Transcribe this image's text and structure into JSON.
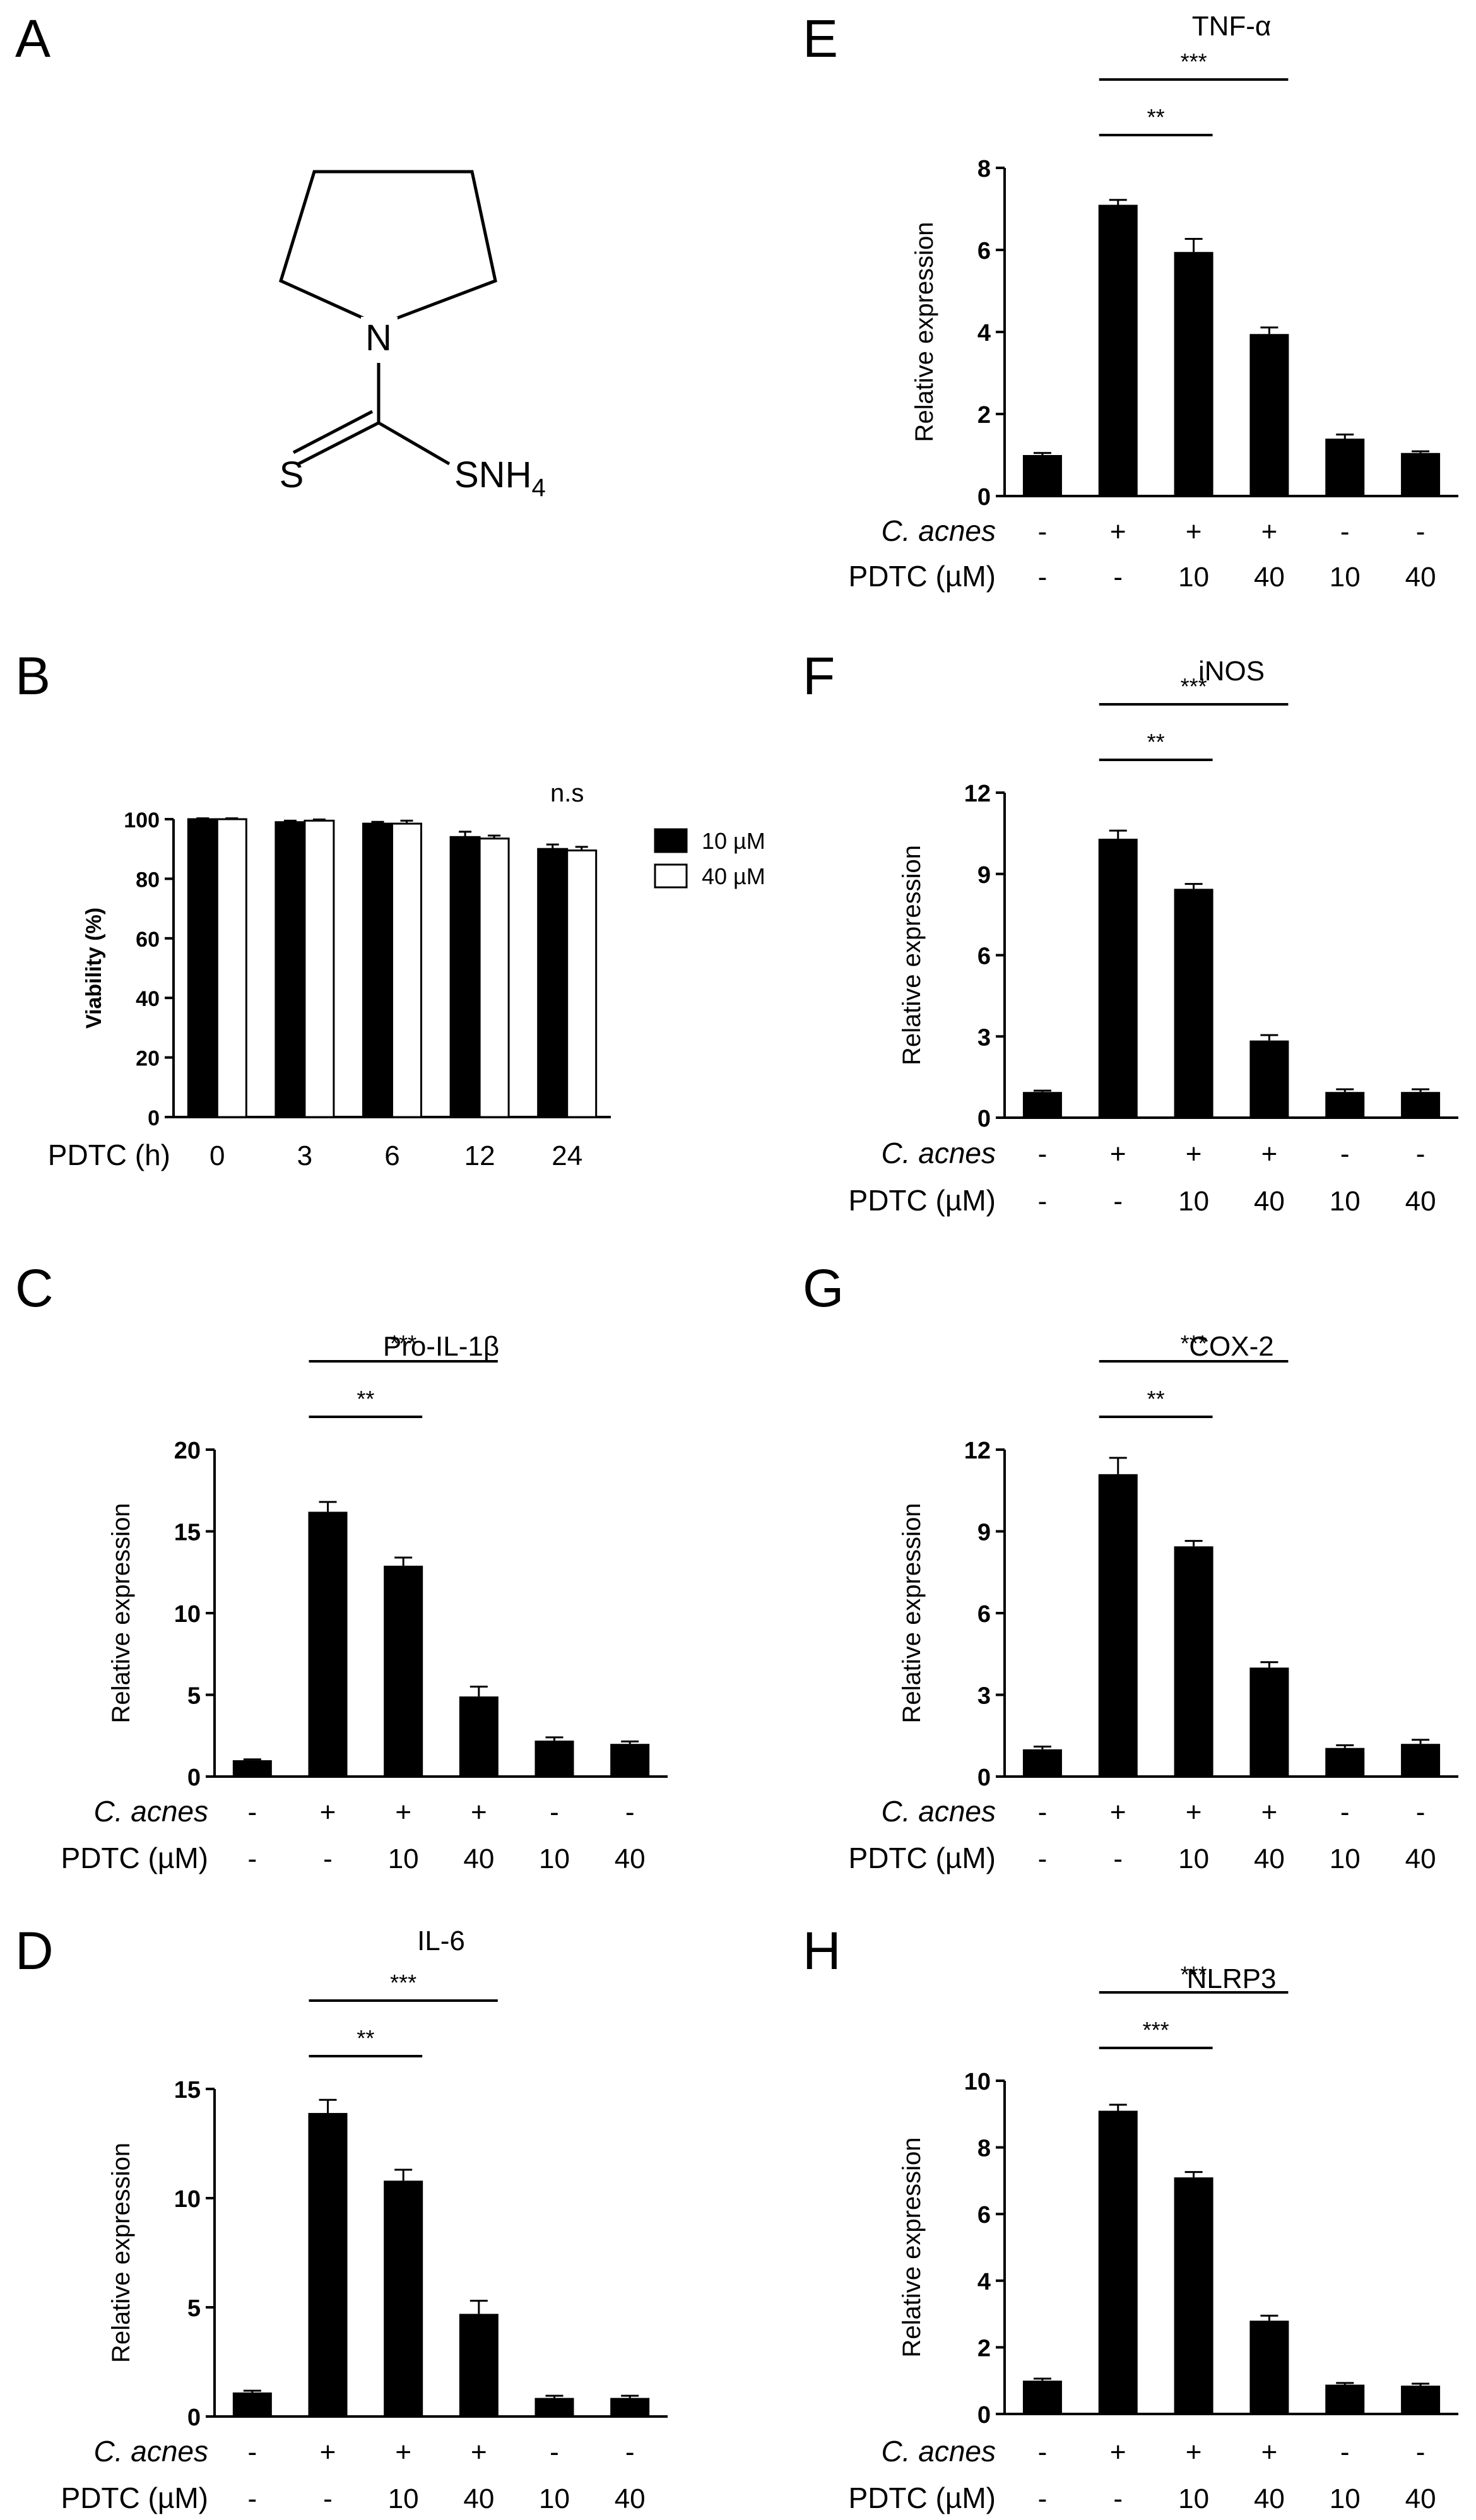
{
  "panel_letters": {
    "A": "A",
    "B": "B",
    "C": "C",
    "D": "D",
    "E": "E",
    "F": "F",
    "G": "G",
    "H": "H"
  },
  "structure": {
    "atom_N": "N",
    "atom_S": "S",
    "group_SNH4": "SNH",
    "group_SNH4_sub": "4"
  },
  "row_labels": {
    "c_acnes": "C. acnes",
    "pdtc_um": "PDTC (µM)",
    "pdtc_h": "PDTC (h)"
  },
  "colors": {
    "bar_fill": "#000000",
    "bar_open": "#ffffff",
    "axis": "#000000"
  },
  "chart_data": [
    {
      "id": "B",
      "type": "bar",
      "title": "",
      "ylabel": "Viability (%)",
      "xlabel": "PDTC (h)",
      "ylim": [
        0,
        100
      ],
      "yticks": [
        "0",
        "20",
        "40",
        "60",
        "80",
        "100"
      ],
      "categories": [
        "0",
        "3",
        "6",
        "12",
        "24"
      ],
      "series": [
        {
          "name": "10 µM",
          "color": "#000000",
          "values": [
            100,
            99,
            98.5,
            94,
            90
          ],
          "errors": [
            0.3,
            0.5,
            0.6,
            1.8,
            1.5
          ]
        },
        {
          "name": "40 µM",
          "color": "#ffffff",
          "values": [
            100,
            99.5,
            98.5,
            93.5,
            89.5
          ],
          "errors": [
            0.3,
            0.4,
            1.0,
            1.0,
            1.2
          ]
        }
      ],
      "annotation": "n.s",
      "legend": "right"
    },
    {
      "id": "C",
      "type": "bar",
      "title": "Pro-IL-1β",
      "ylabel": "Relative expression",
      "ylim": [
        0,
        20
      ],
      "yticks": [
        "0",
        "5",
        "10",
        "15",
        "20"
      ],
      "c_acnes": [
        "-",
        "+",
        "+",
        "+",
        "-",
        "-"
      ],
      "pdtc": [
        "-",
        "-",
        "10",
        "40",
        "10",
        "40"
      ],
      "values": [
        1.0,
        16.2,
        12.9,
        4.9,
        2.2,
        2.0
      ],
      "errors": [
        0.05,
        0.6,
        0.5,
        0.6,
        0.2,
        0.15
      ],
      "significance": [
        {
          "from": 1,
          "to": 2,
          "label": "**"
        },
        {
          "from": 1,
          "to": 3,
          "label": "***"
        }
      ]
    },
    {
      "id": "D",
      "type": "bar",
      "title": "IL-6",
      "ylabel": "Relative expression",
      "ylim": [
        0,
        15
      ],
      "yticks": [
        "0",
        "5",
        "10",
        "15"
      ],
      "c_acnes": [
        "-",
        "+",
        "+",
        "+",
        "-",
        "-"
      ],
      "pdtc": [
        "-",
        "-",
        "10",
        "40",
        "10",
        "40"
      ],
      "values": [
        1.1,
        13.9,
        10.8,
        4.7,
        0.85,
        0.85
      ],
      "errors": [
        0.08,
        0.6,
        0.5,
        0.6,
        0.1,
        0.1
      ],
      "significance": [
        {
          "from": 1,
          "to": 2,
          "label": "**"
        },
        {
          "from": 1,
          "to": 3,
          "label": "***"
        }
      ]
    },
    {
      "id": "E",
      "type": "bar",
      "title": "TNF-α",
      "ylabel": "Relative expression",
      "ylim": [
        0,
        8
      ],
      "yticks": [
        "0",
        "2",
        "4",
        "6",
        "8"
      ],
      "c_acnes": [
        "-",
        "+",
        "+",
        "+",
        "-",
        "-"
      ],
      "pdtc": [
        "-",
        "-",
        "10",
        "40",
        "10",
        "40"
      ],
      "values": [
        1.0,
        7.1,
        5.95,
        3.95,
        1.4,
        1.05
      ],
      "errors": [
        0.05,
        0.12,
        0.32,
        0.16,
        0.1,
        0.04
      ],
      "significance": [
        {
          "from": 1,
          "to": 2,
          "label": "**"
        },
        {
          "from": 1,
          "to": 3,
          "label": "***"
        }
      ]
    },
    {
      "id": "F",
      "type": "bar",
      "title": "iNOS",
      "ylabel": "Relative expression",
      "ylim": [
        0,
        12
      ],
      "yticks": [
        "0",
        "3",
        "6",
        "9",
        "12"
      ],
      "c_acnes": [
        "-",
        "+",
        "+",
        "+",
        "-",
        "-"
      ],
      "pdtc": [
        "-",
        "-",
        "10",
        "40",
        "10",
        "40"
      ],
      "values": [
        0.95,
        10.3,
        8.45,
        2.85,
        0.95,
        0.95
      ],
      "errors": [
        0.05,
        0.3,
        0.18,
        0.2,
        0.1,
        0.1
      ],
      "significance": [
        {
          "from": 1,
          "to": 2,
          "label": "**"
        },
        {
          "from": 1,
          "to": 3,
          "label": "***"
        }
      ]
    },
    {
      "id": "G",
      "type": "bar",
      "title": "COX-2",
      "ylabel": "Relative expression",
      "ylim": [
        0,
        12
      ],
      "yticks": [
        "0",
        "3",
        "6",
        "9",
        "12"
      ],
      "c_acnes": [
        "-",
        "+",
        "+",
        "+",
        "-",
        "-"
      ],
      "pdtc": [
        "-",
        "-",
        "10",
        "40",
        "10",
        "40"
      ],
      "values": [
        1.0,
        11.1,
        8.45,
        4.0,
        1.05,
        1.2
      ],
      "errors": [
        0.1,
        0.6,
        0.2,
        0.2,
        0.1,
        0.15
      ],
      "significance": [
        {
          "from": 1,
          "to": 2,
          "label": "**"
        },
        {
          "from": 1,
          "to": 3,
          "label": "***"
        }
      ]
    },
    {
      "id": "H",
      "type": "bar",
      "title": "NLRP3",
      "ylabel": "Relative expression",
      "ylim": [
        0,
        10
      ],
      "yticks": [
        "0",
        "2",
        "4",
        "6",
        "8",
        "10"
      ],
      "c_acnes": [
        "-",
        "+",
        "+",
        "+",
        "-",
        "-"
      ],
      "pdtc": [
        "-",
        "-",
        "10",
        "40",
        "10",
        "40"
      ],
      "values": [
        1.0,
        9.1,
        7.1,
        2.8,
        0.88,
        0.85
      ],
      "errors": [
        0.06,
        0.18,
        0.16,
        0.15,
        0.05,
        0.06
      ],
      "significance": [
        {
          "from": 1,
          "to": 2,
          "label": "***"
        },
        {
          "from": 1,
          "to": 3,
          "label": "***"
        }
      ]
    }
  ]
}
